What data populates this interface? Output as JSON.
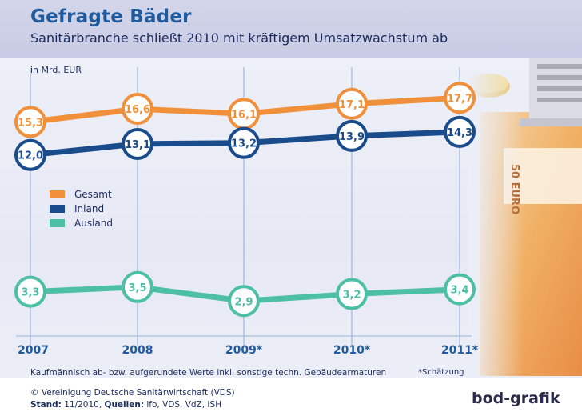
{
  "header": {
    "title": "Gefragte Bäder",
    "subtitle": "Sanitärbranche schließt 2010 mit kräftigem Umsatzwachstum ab"
  },
  "unit_label": "in Mrd. EUR",
  "footer": {
    "footnote": "Kaufmännisch ab- bzw. aufgerundete Werte inkl. sonstige techn. Gebäudearmaturen",
    "estimate_note": "*Schätzung",
    "copyright": "© Vereinigung Deutsche Sanitärwirtschaft (VDS)",
    "source_prefix": "Stand:",
    "source_date": "11/2010,",
    "source_label": "Quellen:",
    "source_list": "ifo, VDS, VdZ, ISH",
    "brand": "bod-grafik"
  },
  "colors": {
    "gesamt": "#f0903a",
    "inland": "#1a4c8c",
    "ausland": "#4dbfa5",
    "axis_text": "#1f5b9e",
    "grid": "#9fb4d8"
  },
  "chart_data": {
    "type": "line",
    "title": "Gefragte Bäder",
    "subtitle": "Sanitärbranche schließt 2010 mit kräftigem Umsatzwachstum ab",
    "ylabel": "in Mrd. EUR",
    "categories": [
      "2007",
      "2008",
      "2009*",
      "2010*",
      "2011*"
    ],
    "series": [
      {
        "name": "Gesamt",
        "values": [
          15.3,
          16.6,
          16.1,
          17.1,
          17.7
        ],
        "labels": [
          "15,3",
          "16,6",
          "16,1",
          "17,1",
          "17,7"
        ]
      },
      {
        "name": "Inland",
        "values": [
          12.0,
          13.1,
          13.2,
          13.9,
          14.3
        ],
        "labels": [
          "12,0",
          "13,1",
          "13,2",
          "13,9",
          "14,3"
        ]
      },
      {
        "name": "Ausland",
        "values": [
          3.3,
          3.5,
          2.9,
          3.2,
          3.4
        ],
        "labels": [
          "3,3",
          "3,5",
          "2,9",
          "3,2",
          "3,4"
        ]
      }
    ],
    "grid": "vertical",
    "legend_position": "left"
  }
}
